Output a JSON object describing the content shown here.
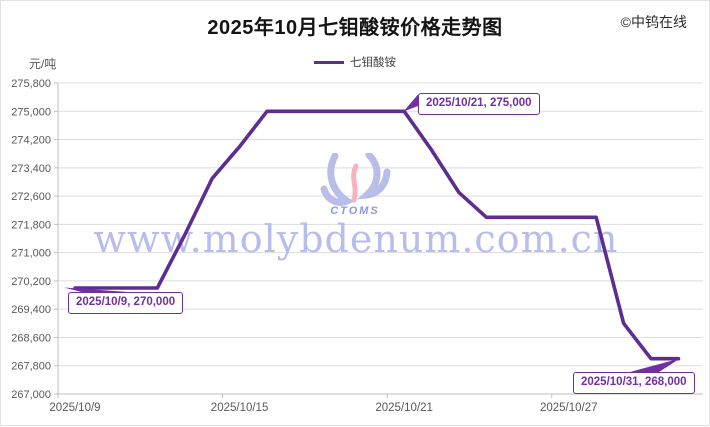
{
  "title": "2025年10月七钼酸铵价格走势图",
  "copyright": "©中钨在线",
  "y_unit": "元/吨",
  "legend": {
    "label": "七钼酸铵"
  },
  "watermark": {
    "logo_text": "CTOMS",
    "url": "www.molybdenum.com.cn"
  },
  "annotations": [
    {
      "text": "2025/10/9, 270,000"
    },
    {
      "text": "2025/10/21, 275,000"
    },
    {
      "text": "2025/10/31, 268,000"
    }
  ],
  "colors": {
    "line": "#5C2E91",
    "annotation": "#7030A0",
    "gridline": "#DDDDDD",
    "axis": "#BFBFBF",
    "tick_label": "#595959",
    "watermark_blue": "#B9BEE9",
    "watermark_pink": "#F5B3BD",
    "logo_text": "#8F9ADE"
  },
  "chart_data": {
    "type": "line",
    "title": "2025年10月七钼酸铵价格走势图",
    "ylabel": "元/吨",
    "ylim": [
      267000,
      275800
    ],
    "y_step": 800,
    "grid": true,
    "legend_position": "top-center",
    "x_tick_labels": [
      "2025/10/9",
      "2025/10/15",
      "2025/10/21",
      "2025/10/27"
    ],
    "series": [
      {
        "name": "七钼酸铵",
        "x": [
          "2025/10/9",
          "2025/10/10",
          "2025/10/11",
          "2025/10/12",
          "2025/10/13",
          "2025/10/14",
          "2025/10/15",
          "2025/10/16",
          "2025/10/17",
          "2025/10/18",
          "2025/10/19",
          "2025/10/20",
          "2025/10/21",
          "2025/10/22",
          "2025/10/23",
          "2025/10/24",
          "2025/10/25",
          "2025/10/26",
          "2025/10/27",
          "2025/10/28",
          "2025/10/29",
          "2025/10/30",
          "2025/10/31"
        ],
        "values": [
          270000,
          270000,
          270000,
          270000,
          271500,
          273100,
          274000,
          275000,
          275000,
          275000,
          275000,
          275000,
          275000,
          273900,
          272700,
          272000,
          272000,
          272000,
          272000,
          272000,
          269000,
          268000,
          268000
        ]
      }
    ],
    "labeled_points": [
      {
        "x": "2025/10/9",
        "value": 270000
      },
      {
        "x": "2025/10/21",
        "value": 275000
      },
      {
        "x": "2025/10/31",
        "value": 268000
      }
    ]
  }
}
